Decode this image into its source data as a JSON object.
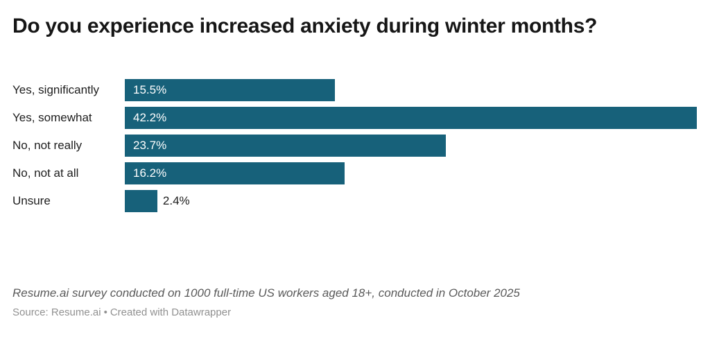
{
  "chart_data": {
    "type": "bar",
    "orientation": "horizontal",
    "title": "Do you experience increased anxiety during winter months?",
    "categories": [
      "Yes, significantly",
      "Yes, somewhat",
      "No, not really",
      "No, not at all",
      "Unsure"
    ],
    "values": [
      15.5,
      42.2,
      23.7,
      16.2,
      2.4
    ],
    "value_labels": [
      "15.5%",
      "42.2%",
      "23.7%",
      "16.2%",
      "2.4%"
    ],
    "unit": "%",
    "xlim": [
      0,
      42.2
    ],
    "grid": false,
    "legend": "none",
    "value_label_position": "inside-start; outside-end when bar too short",
    "bar_color": "#17617a",
    "value_label_inside_color": "#ffffff",
    "value_label_outside_color": "#1d1d1d"
  },
  "footer": {
    "note": "Resume.ai survey conducted on 1000 full-time US workers aged 18+, conducted in October 2025",
    "source": "Source: Resume.ai",
    "separator": "•",
    "attribution": "Created with Datawrapper"
  },
  "colors": {
    "background": "#ffffff",
    "title_text": "#161616",
    "category_text": "#1d1d1d",
    "note_text": "#595959",
    "source_text": "#909090"
  }
}
